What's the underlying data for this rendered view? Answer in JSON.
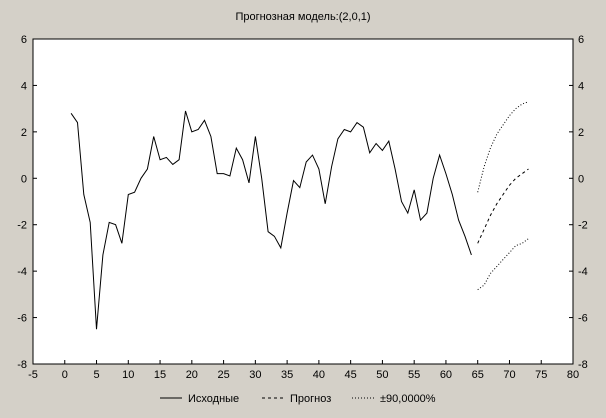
{
  "chart_data": {
    "type": "line",
    "title": "Прогнозная модель:(2,0,1)",
    "xlabel": "",
    "ylabel": "",
    "xlim": [
      -5,
      80
    ],
    "ylim": [
      -8,
      6
    ],
    "x_ticks": [
      "-5",
      "0",
      "5",
      "10",
      "15",
      "20",
      "25",
      "30",
      "35",
      "40",
      "45",
      "50",
      "55",
      "60",
      "65",
      "70",
      "75",
      "80"
    ],
    "y_ticks": [
      "6",
      "4",
      "2",
      "0",
      "-2",
      "-4",
      "-6",
      "-8"
    ],
    "grid": false,
    "legend_position": "bottom",
    "series": [
      {
        "name": "Исходные",
        "style": "solid",
        "color": "#000000",
        "x": [
          1,
          2,
          3,
          4,
          5,
          6,
          7,
          8,
          9,
          10,
          11,
          12,
          13,
          14,
          15,
          16,
          17,
          18,
          19,
          20,
          21,
          22,
          23,
          24,
          25,
          26,
          27,
          28,
          29,
          30,
          31,
          32,
          33,
          34,
          35,
          36,
          37,
          38,
          39,
          40,
          41,
          42,
          43,
          44,
          45,
          46,
          47,
          48,
          49,
          50,
          51,
          52,
          53,
          54,
          55,
          56,
          57,
          58,
          59,
          60,
          61,
          62,
          63,
          64
        ],
        "y": [
          2.8,
          2.4,
          -0.7,
          -1.9,
          -6.5,
          -3.3,
          -1.9,
          -2.0,
          -2.8,
          -0.7,
          -0.6,
          0.0,
          0.4,
          1.8,
          0.8,
          0.9,
          0.6,
          0.8,
          2.9,
          2.0,
          2.1,
          2.5,
          1.8,
          0.2,
          0.2,
          0.1,
          1.3,
          0.8,
          -0.2,
          1.8,
          0.0,
          -2.3,
          -2.5,
          -3.0,
          -1.5,
          -0.1,
          -0.4,
          0.7,
          1.0,
          0.4,
          -1.1,
          0.5,
          1.7,
          2.1,
          2.0,
          2.4,
          2.2,
          1.1,
          1.5,
          1.2,
          1.6,
          0.4,
          -1.0,
          -1.5,
          -0.5,
          -1.8,
          -1.5,
          0.0,
          1.0,
          0.2,
          -0.7,
          -1.8,
          -2.5,
          -3.3
        ]
      },
      {
        "name": "Прогноз",
        "style": "dashed",
        "color": "#000000",
        "x": [
          65,
          66,
          67,
          68,
          69,
          70,
          71,
          72,
          73
        ],
        "y": [
          -2.8,
          -2.2,
          -1.6,
          -1.1,
          -0.7,
          -0.3,
          0.0,
          0.2,
          0.4
        ]
      },
      {
        "name": "±90,0000%",
        "style": "dotted",
        "color": "#000000",
        "x": [
          65,
          66,
          67,
          68,
          69,
          70,
          71,
          72,
          73
        ],
        "y": [
          -0.6,
          0.5,
          1.3,
          1.9,
          2.3,
          2.7,
          3.0,
          3.2,
          3.3
        ]
      },
      {
        "name": "±90,0000%",
        "style": "dotted",
        "color": "#000000",
        "x": [
          65,
          66,
          67,
          68,
          69,
          70,
          71,
          72,
          73
        ],
        "y": [
          -4.8,
          -4.6,
          -4.1,
          -3.8,
          -3.5,
          -3.2,
          -2.9,
          -2.8,
          -2.6
        ]
      }
    ],
    "legend": [
      {
        "label": "Исходные",
        "style": "solid"
      },
      {
        "label": "Прогноз",
        "style": "dashed"
      },
      {
        "label": "±90,0000%",
        "style": "dotted"
      }
    ]
  }
}
